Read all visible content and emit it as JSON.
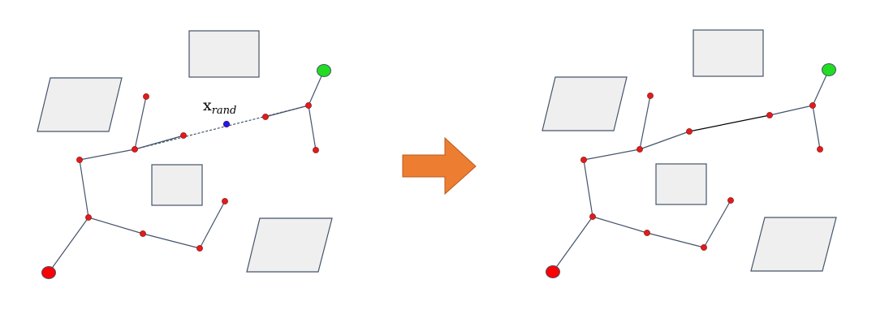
{
  "colors": {
    "node": "#e21b1b",
    "start": "#ff0000",
    "goal": "#22dd22",
    "sample": "#1a1aff",
    "arrow": "#ed7d31",
    "obstacle": "#efefef"
  },
  "left_panel": {
    "sample_label_main": "x",
    "sample_label_sub": "rand"
  }
}
